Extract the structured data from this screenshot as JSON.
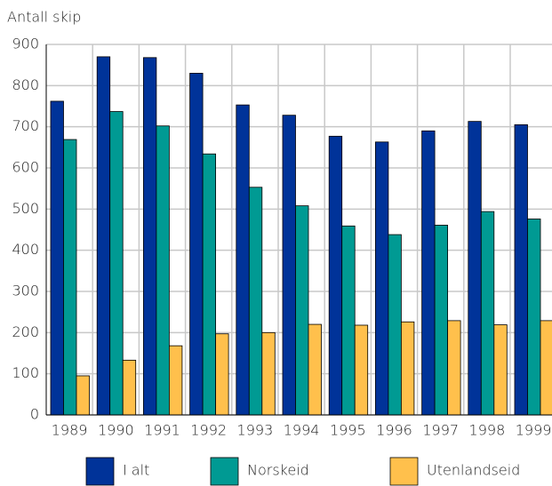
{
  "chart_data": {
    "type": "bar",
    "y_label": "Antall skip",
    "categories": [
      "1989",
      "1990",
      "1991",
      "1992",
      "1993",
      "1994",
      "1995",
      "1996",
      "1997",
      "1998",
      "1999"
    ],
    "series": [
      {
        "name": "I alt",
        "color": "#003399",
        "values": [
          762,
          870,
          868,
          830,
          753,
          728,
          677,
          663,
          690,
          713,
          705
        ]
      },
      {
        "name": "Norskeid",
        "color": "#009a93",
        "values": [
          669,
          737,
          702,
          634,
          553,
          508,
          459,
          438,
          461,
          494,
          476
        ]
      },
      {
        "name": "Utenlandseid",
        "color": "#ffc04c",
        "values": [
          95,
          133,
          168,
          197,
          200,
          220,
          218,
          226,
          229,
          219,
          229
        ]
      }
    ],
    "ylim": [
      0,
      900
    ],
    "yticks": [
      0,
      100,
      200,
      300,
      400,
      500,
      600,
      700,
      800,
      900
    ],
    "grid": true
  }
}
